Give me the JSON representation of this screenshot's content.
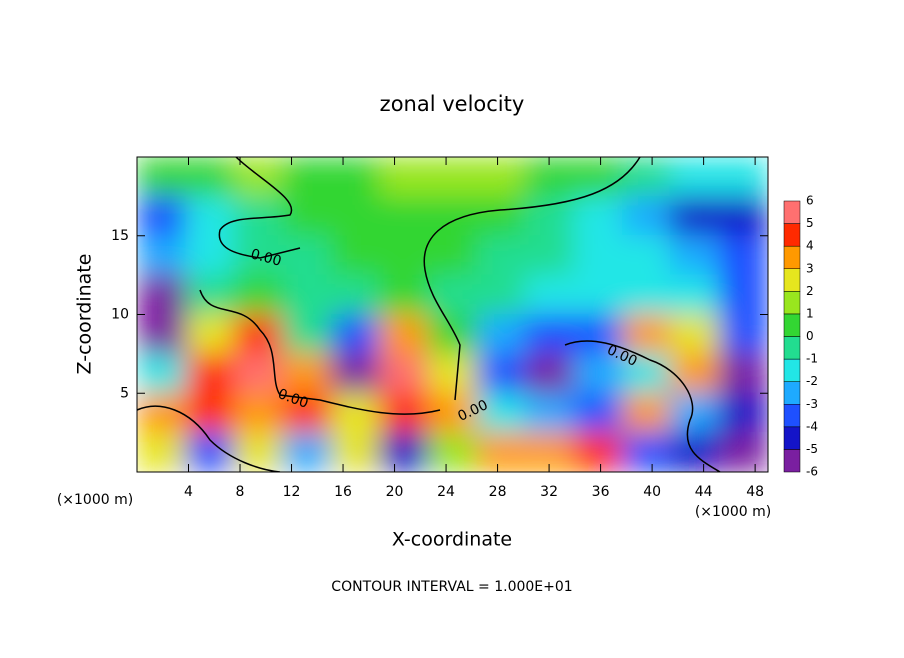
{
  "chart_data": {
    "type": "contour",
    "title": "zonal velocity",
    "xlabel": "X-coordinate",
    "ylabel": "Z-coordinate",
    "x_unit": "(×1000 m)",
    "footer": "CONTOUR INTERVAL = 1.000E+01",
    "xlim": [
      0,
      49
    ],
    "xticks": [
      4,
      8,
      12,
      16,
      20,
      24,
      28,
      32,
      36,
      40,
      44,
      48
    ],
    "ylim": [
      0,
      20
    ],
    "yticks": [
      5,
      10,
      15
    ],
    "x": [
      1.9,
      5.7,
      9.4,
      13.2,
      17.0,
      20.7,
      24.5,
      28.3,
      32.0,
      35.8,
      39.6,
      43.3,
      47.1
    ],
    "y": [
      18.75,
      16.25,
      13.75,
      11.25,
      8.75,
      6.25,
      3.75,
      1.25
    ],
    "z": [
      [
        0,
        0.5,
        1,
        0.5,
        0.5,
        1,
        1,
        1,
        0.5,
        0,
        -1,
        -1.5,
        -2
      ],
      [
        -4,
        -2,
        -0.5,
        0,
        0,
        0.5,
        0.5,
        0,
        -1,
        -2,
        -3,
        -5,
        -5
      ],
      [
        -3,
        -2,
        -1,
        -0.5,
        0,
        0,
        0,
        -0.5,
        -1,
        -1.5,
        -2,
        -3,
        -4
      ],
      [
        -6,
        -1,
        0,
        -1,
        -1,
        0,
        -0.5,
        -1,
        -1.5,
        -2,
        -2,
        -2,
        -4
      ],
      [
        -6,
        2,
        4,
        -1,
        -4,
        3,
        0,
        -3,
        -4,
        -4,
        3,
        2,
        -4
      ],
      [
        -2,
        4,
        6,
        3,
        -6,
        5,
        2,
        -4,
        -6,
        -3,
        -2,
        3,
        -6
      ],
      [
        3,
        4,
        3,
        4,
        2,
        4,
        3,
        -2,
        -3,
        -4,
        3,
        -3,
        -5
      ],
      [
        2,
        -4,
        2,
        -3,
        2,
        -5,
        1,
        3,
        3,
        4,
        -4,
        -5,
        -6
      ]
    ],
    "levels": [
      -6,
      -5,
      -4,
      -3,
      -2,
      -1,
      0,
      1,
      2,
      3,
      4,
      5,
      6
    ],
    "colors": [
      "#7a1fa0",
      "#1414c8",
      "#1e50ff",
      "#1eaaff",
      "#22e6e6",
      "#22dd90",
      "#33d633",
      "#99e61e",
      "#e6e61e",
      "#ff9900",
      "#ff2a00",
      "#ff7070"
    ],
    "contour_labels": [
      "0.00",
      "0.00",
      "0.00",
      "0.00"
    ]
  }
}
